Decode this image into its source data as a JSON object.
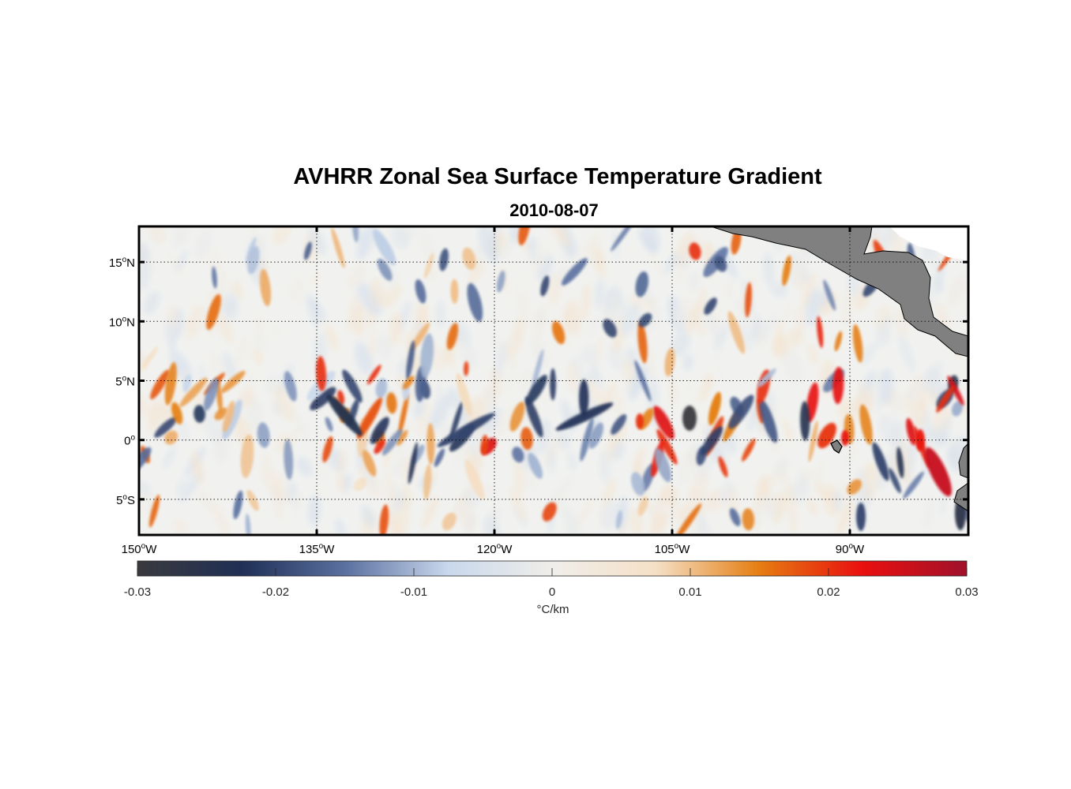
{
  "title": "AVHRR Zonal Sea Surface Temperature Gradient",
  "subtitle": "2010-08-07",
  "map": {
    "lon_range": [
      -150,
      -80
    ],
    "lat_range": [
      -8,
      18
    ],
    "lat_ticks": [
      {
        "value": 15,
        "deg": "15",
        "hemi": "N"
      },
      {
        "value": 10,
        "deg": "10",
        "hemi": "N"
      },
      {
        "value": 5,
        "deg": "5",
        "hemi": "N"
      },
      {
        "value": 0,
        "deg": "0",
        "hemi": ""
      },
      {
        "value": -5,
        "deg": "5",
        "hemi": "S"
      }
    ],
    "lon_ticks": [
      {
        "value": -150,
        "deg": "150",
        "hemi": "W"
      },
      {
        "value": -135,
        "deg": "135",
        "hemi": "W"
      },
      {
        "value": -120,
        "deg": "120",
        "hemi": "W"
      },
      {
        "value": -105,
        "deg": "105",
        "hemi": "W"
      },
      {
        "value": -90,
        "deg": "90",
        "hemi": "W"
      }
    ],
    "grid": "dotted",
    "land_color": "#808080"
  },
  "colorbar": {
    "min": -0.03,
    "max": 0.03,
    "ticks": [
      "-0.03",
      "-0.02",
      "-0.01",
      "0",
      "0.01",
      "0.02",
      "0.03"
    ],
    "units": "°C/km",
    "colors": [
      "#3a3a3e",
      "#1f2f55",
      "#5a70a0",
      "#c9d8ec",
      "#f0eeea",
      "#f5e0c6",
      "#e57d12",
      "#e90f0f",
      "#a0102a"
    ]
  }
}
